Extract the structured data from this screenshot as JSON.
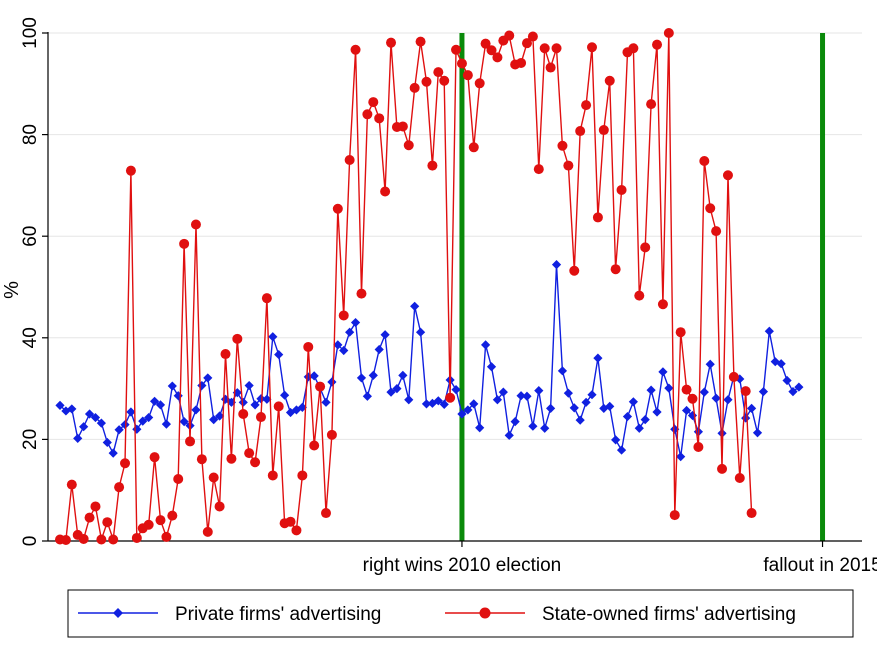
{
  "chart_data": {
    "type": "line",
    "xlabel": "",
    "ylabel": "%",
    "ylim": [
      0,
      100
    ],
    "yticks": [
      0,
      20,
      40,
      60,
      80,
      100
    ],
    "x_index_range": [
      0,
      135
    ],
    "xtick_labels": [
      {
        "label": "right wins 2010 election",
        "index": 68
      },
      {
        "label": "fallout in 2015",
        "index": 129
      }
    ],
    "event_lines": [
      {
        "index": 68,
        "color": "#0a8a0a"
      },
      {
        "index": 129,
        "color": "#0a8a0a"
      }
    ],
    "grid": "horizontal",
    "legend_position": "bottom",
    "series": [
      {
        "name": "Private firms' advertising",
        "color": "#1020e0",
        "marker": "diamond",
        "values": [
          26.7,
          25.6,
          26,
          20.2,
          22.5,
          25,
          24.3,
          23.2,
          19.4,
          17.3,
          21.9,
          22.9,
          25.4,
          22,
          23.6,
          24.3,
          27.5,
          26.8,
          23,
          30.5,
          28.6,
          23.5,
          22.7,
          25.8,
          30.6,
          32.1,
          23.9,
          24.6,
          27.9,
          27.3,
          29.2,
          27.3,
          30.6,
          26.8,
          28,
          27.9,
          40.2,
          36.7,
          28.7,
          25.3,
          25.8,
          26.3,
          32.3,
          32.5,
          30.1,
          27.3,
          31.3,
          38.6,
          37.5,
          41.1,
          43,
          32.1,
          28.5,
          32.6,
          37.7,
          40.6,
          29.3,
          30,
          32.6,
          27.8,
          46.2,
          41.1,
          27,
          27.1,
          27.6,
          26.9,
          31.7,
          29.8,
          25,
          25.8,
          27,
          22.3,
          38.6,
          34.3,
          27.8,
          29.3,
          20.8,
          23.5,
          28.6,
          28.5,
          22.6,
          29.6,
          22.2,
          26.1,
          54.4,
          33.5,
          29.1,
          26.2,
          23.8,
          27.3,
          28.8,
          36,
          26.1,
          26.5,
          19.9,
          17.9,
          24.5,
          27.4,
          22.2,
          23.9,
          29.7,
          25.4,
          33.3,
          30.1,
          22,
          16.6,
          25.7,
          24.7,
          21.5,
          29.3,
          34.8,
          28.1,
          21.2,
          27.8,
          32.5,
          31.9,
          24.2,
          26.1,
          21.3,
          29.4,
          41.3,
          35.3,
          34.9,
          31.6,
          29.4,
          30.3
        ]
      },
      {
        "name": "State-owned firms' advertising",
        "color": "#e01010",
        "marker": "circle",
        "values": [
          0.3,
          0.2,
          11.1,
          1.2,
          0.4,
          4.6,
          6.8,
          0.3,
          3.7,
          0.3,
          10.6,
          15.3,
          72.9,
          0.6,
          2.5,
          3.2,
          16.5,
          4.1,
          0.8,
          5,
          12.2,
          58.5,
          19.6,
          62.3,
          16.1,
          1.8,
          12.5,
          6.8,
          36.8,
          16.2,
          39.8,
          25,
          17.3,
          15.5,
          24.4,
          47.8,
          12.9,
          26.5,
          3.5,
          3.8,
          2.1,
          12.9,
          38.2,
          18.8,
          30.4,
          5.5,
          20.9,
          65.4,
          44.4,
          75,
          96.7,
          48.7,
          84,
          86.4,
          83.2,
          68.8,
          98.1,
          81.5,
          81.6,
          77.9,
          89.2,
          98.3,
          90.4,
          73.9,
          92.3,
          90.6,
          28.2,
          96.7,
          94,
          91.7,
          77.5,
          90.1,
          97.9,
          96.6,
          95.2,
          98.5,
          99.5,
          93.8,
          94.1,
          98,
          99.3,
          73.2,
          97,
          93.2,
          97,
          77.8,
          73.9,
          53.2,
          80.7,
          85.8,
          97.2,
          63.7,
          80.9,
          90.6,
          53.5,
          69.1,
          96.2,
          97,
          48.3,
          57.8,
          86,
          97.7,
          46.6,
          100,
          5.1,
          41.1,
          29.8,
          28,
          18.5,
          74.8,
          65.5,
          61,
          14.2,
          72,
          32.3,
          12.4,
          29.5,
          5.5
        ]
      }
    ]
  }
}
